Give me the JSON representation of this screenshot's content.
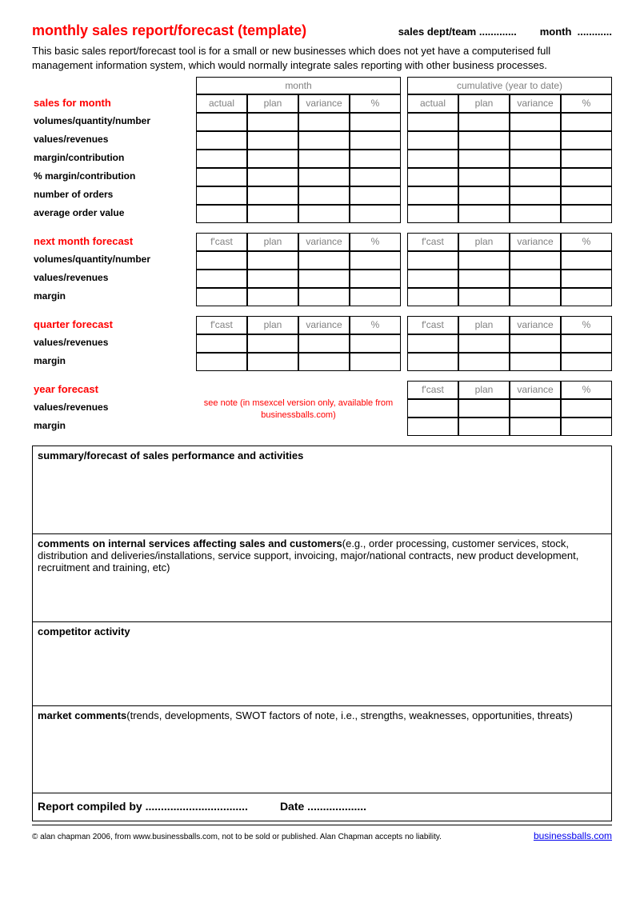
{
  "colors": {
    "accent": "#ff0000",
    "muted": "#808080",
    "text": "#000000",
    "link": "#0000ee",
    "background": "#ffffff",
    "border": "#000000"
  },
  "header": {
    "title": "monthly sales report/forecast (template)",
    "dept_label": "sales dept/team .............",
    "month_label": "month  ............"
  },
  "intro": "This basic sales report/forecast tool is for a small or new businesses which does not yet have a computerised full management information system, which would normally integrate sales reporting with other business processes.",
  "group_headers": {
    "month": "month",
    "cumulative": "cumulative (year to date)"
  },
  "col_headers_actual": [
    "actual",
    "plan",
    "variance",
    "%"
  ],
  "col_headers_fcast": [
    "f'cast",
    "plan",
    "variance",
    "%"
  ],
  "sections": {
    "sales_for_month": {
      "title": "sales for month",
      "rows": [
        "volumes/quantity/number",
        "values/revenues",
        "margin/contribution",
        "% margin/contribution",
        "number of orders",
        "average order value"
      ]
    },
    "next_month_forecast": {
      "title": "next month forecast",
      "rows": [
        "volumes/quantity/number",
        "values/revenues",
        "margin"
      ]
    },
    "quarter_forecast": {
      "title": "quarter forecast",
      "rows": [
        "values/revenues",
        "margin"
      ]
    },
    "year_forecast": {
      "title": "year forecast",
      "rows": [
        "values/revenues",
        "margin"
      ],
      "note": "see note (in msexcel version only, available from businessballs.com)"
    }
  },
  "text_sections": {
    "summary": "summary/forecast of sales performance and activities",
    "internal_bold": "comments on internal services affecting sales and customers",
    "internal_rest": "(e.g., order processing, customer services, stock, distribution and deliveries/installations, service support, invoicing, major/national contracts, new product development, recruitment and training, etc)",
    "competitor": "competitor activity",
    "market_bold": "market comments",
    "market_rest": "(trends, developments, SWOT factors of note, i.e., strengths, weaknesses, opportunities, threats)"
  },
  "compiled": {
    "by": "Report compiled by   .................................",
    "date": "Date  ..................."
  },
  "footer": {
    "copyright": "© alan chapman 2006, from www.businessballs.com, not to be sold or published. Alan Chapman accepts no liability.",
    "link": "businessballs.com"
  }
}
